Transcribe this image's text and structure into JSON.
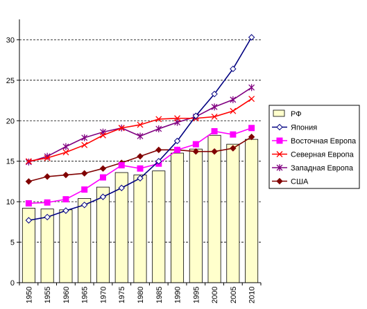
{
  "chart_data": {
    "type": "bar",
    "categories": [
      "1950",
      "1955",
      "1960",
      "1965",
      "1970",
      "1975",
      "1980",
      "1985",
      "1990",
      "1995",
      "2000",
      "2005",
      "2010"
    ],
    "ylim": [
      0,
      32
    ],
    "yticks": [
      0,
      5,
      10,
      15,
      20,
      25,
      30
    ],
    "grid": true,
    "legend_position": "right",
    "bar_series": {
      "name": "РФ",
      "color": "#FFFFCC",
      "values": [
        9.2,
        9.1,
        9.0,
        10.4,
        11.8,
        13.6,
        13.3,
        13.8,
        16.0,
        16.5,
        18.2,
        17.1,
        17.7
      ]
    },
    "series": [
      {
        "name": "Япония",
        "color": "#000080",
        "marker": "diamond-open",
        "values": [
          7.7,
          8.1,
          8.9,
          9.6,
          10.6,
          11.7,
          12.9,
          15.0,
          17.5,
          20.6,
          23.3,
          26.4,
          30.3
        ]
      },
      {
        "name": "Восточная Европа",
        "color": "#FF00FF",
        "marker": "square",
        "values": [
          9.8,
          9.9,
          10.3,
          11.5,
          13.0,
          14.5,
          14.1,
          14.7,
          16.4,
          17.1,
          18.7,
          18.3,
          19.1
        ]
      },
      {
        "name": "Северная Европа",
        "color": "#FF0000",
        "marker": "x",
        "values": [
          15.0,
          15.4,
          16.1,
          17.0,
          18.2,
          19.1,
          19.5,
          20.2,
          20.3,
          20.3,
          20.5,
          21.2,
          22.7
        ]
      },
      {
        "name": "Западная Европа",
        "color": "#800080",
        "marker": "star",
        "values": [
          14.9,
          15.6,
          16.8,
          17.9,
          18.6,
          19.1,
          18.1,
          19.0,
          19.8,
          20.5,
          21.7,
          22.6,
          24.1
        ]
      },
      {
        "name": "США",
        "color": "#800000",
        "marker": "diamond",
        "values": [
          12.5,
          13.1,
          13.3,
          13.5,
          14.1,
          14.8,
          15.6,
          16.4,
          16.4,
          16.2,
          16.2,
          16.6,
          18.0
        ]
      }
    ]
  }
}
